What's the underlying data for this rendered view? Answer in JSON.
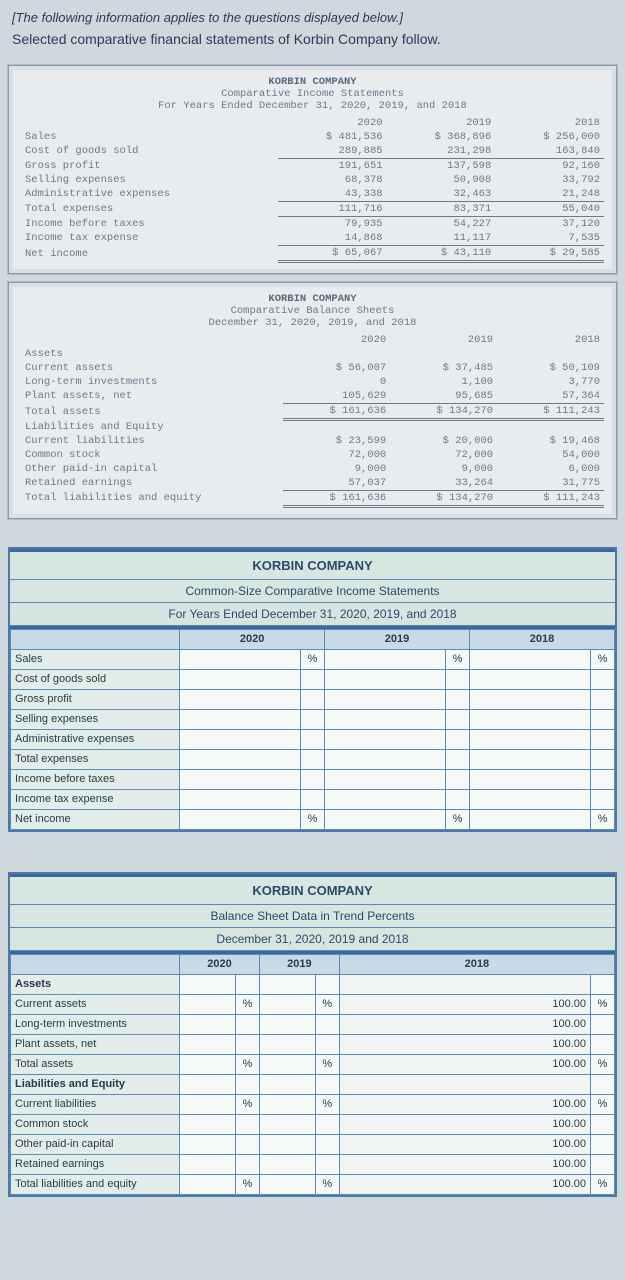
{
  "intro_italic": "[The following information applies to the questions displayed below.]",
  "intro_text": "Selected comparative financial statements of Korbin Company follow.",
  "company": "KORBIN COMPANY",
  "income_stmt": {
    "title": "Comparative Income Statements",
    "period": "For Years Ended December 31, 2020, 2019, and 2018",
    "years": [
      "2020",
      "2019",
      "2018"
    ],
    "rows": [
      {
        "label": "Sales",
        "v": [
          "$ 481,536",
          "$ 368,896",
          "$ 256,000"
        ]
      },
      {
        "label": "Cost of goods sold",
        "v": [
          "289,885",
          "231,298",
          "163,840"
        ],
        "ul": true
      },
      {
        "label": "Gross profit",
        "v": [
          "191,651",
          "137,598",
          "92,160"
        ]
      },
      {
        "label": "Selling expenses",
        "v": [
          "68,378",
          "50,908",
          "33,792"
        ]
      },
      {
        "label": "Administrative expenses",
        "v": [
          "43,338",
          "32,463",
          "21,248"
        ],
        "ul": true
      },
      {
        "label": "Total expenses",
        "v": [
          "111,716",
          "83,371",
          "55,040"
        ],
        "ul": true
      },
      {
        "label": "Income before taxes",
        "v": [
          "79,935",
          "54,227",
          "37,120"
        ]
      },
      {
        "label": "Income tax expense",
        "v": [
          "14,868",
          "11,117",
          "7,535"
        ],
        "ul": true
      },
      {
        "label": "Net income",
        "v": [
          "$ 65,067",
          "$ 43,110",
          "$ 29,585"
        ],
        "dbl": true
      }
    ]
  },
  "balance_sheet": {
    "title": "Comparative Balance Sheets",
    "period": "December 31, 2020, 2019, and 2018",
    "years": [
      "2020",
      "2019",
      "2018"
    ],
    "sections": [
      {
        "header": "Assets",
        "rows": [
          {
            "label": "Current assets",
            "v": [
              "$ 56,007",
              "$ 37,485",
              "$ 50,109"
            ]
          },
          {
            "label": "Long-term investments",
            "v": [
              "0",
              "1,100",
              "3,770"
            ]
          },
          {
            "label": "Plant assets, net",
            "v": [
              "105,629",
              "95,685",
              "57,364"
            ],
            "ul": true
          },
          {
            "label": "Total assets",
            "v": [
              "$ 161,636",
              "$ 134,270",
              "$ 111,243"
            ],
            "dbl": true
          }
        ]
      },
      {
        "header": "Liabilities and Equity",
        "rows": [
          {
            "label": "Current liabilities",
            "v": [
              "$ 23,599",
              "$ 20,006",
              "$ 19,468"
            ]
          },
          {
            "label": "Common stock",
            "v": [
              "72,000",
              "72,000",
              "54,000"
            ]
          },
          {
            "label": "Other paid-in capital",
            "v": [
              "9,000",
              "9,000",
              "6,000"
            ]
          },
          {
            "label": "Retained earnings",
            "v": [
              "57,037",
              "33,264",
              "31,775"
            ],
            "ul": true
          },
          {
            "label": "Total liabilities and equity",
            "v": [
              "$ 161,636",
              "$ 134,270",
              "$ 111,243"
            ],
            "dbl": true
          }
        ]
      }
    ]
  },
  "ws1": {
    "title1": "KORBIN COMPANY",
    "title2": "Common-Size Comparative Income Statements",
    "title3": "For Years Ended December 31, 2020, 2019, and 2018",
    "year_heads": [
      "2020",
      "2019",
      "2018"
    ],
    "rows": [
      {
        "label": "Sales",
        "pct": [
          "%",
          "%",
          "%"
        ]
      },
      {
        "label": "Cost of goods sold",
        "pct": [
          "",
          "",
          ""
        ]
      },
      {
        "label": "Gross profit",
        "pct": [
          "",
          "",
          ""
        ]
      },
      {
        "label": "Selling expenses",
        "pct": [
          "",
          "",
          ""
        ]
      },
      {
        "label": "Administrative expenses",
        "pct": [
          "",
          "",
          ""
        ]
      },
      {
        "label": "Total expenses",
        "pct": [
          "",
          "",
          ""
        ]
      },
      {
        "label": "Income before taxes",
        "pct": [
          "",
          "",
          ""
        ]
      },
      {
        "label": "Income tax expense",
        "pct": [
          "",
          "",
          ""
        ]
      },
      {
        "label": "Net income",
        "pct": [
          "%",
          "%",
          "%"
        ]
      }
    ]
  },
  "ws2": {
    "title1": "KORBIN COMPANY",
    "title2": "Balance Sheet Data in Trend Percents",
    "title3": "December 31, 2020, 2019 and 2018",
    "year_heads": [
      "2020",
      "2019",
      "2018"
    ],
    "sections": [
      {
        "header": "Assets",
        "rows": [
          {
            "label": "Current assets",
            "pct": [
              "%",
              "%"
            ],
            "val": "100.00",
            "vp": "%"
          },
          {
            "label": "Long-term investments",
            "pct": [
              "",
              ""
            ],
            "val": "100.00",
            "vp": ""
          },
          {
            "label": "Plant assets, net",
            "pct": [
              "",
              ""
            ],
            "val": "100.00",
            "vp": ""
          },
          {
            "label": "Total assets",
            "pct": [
              "%",
              "%"
            ],
            "val": "100.00",
            "vp": "%"
          }
        ]
      },
      {
        "header": "Liabilities and Equity",
        "rows": [
          {
            "label": "Current liabilities",
            "pct": [
              "%",
              "%"
            ],
            "val": "100.00",
            "vp": "%"
          },
          {
            "label": "Common stock",
            "pct": [
              "",
              ""
            ],
            "val": "100.00",
            "vp": ""
          },
          {
            "label": "Other paid-in capital",
            "pct": [
              "",
              ""
            ],
            "val": "100.00",
            "vp": ""
          },
          {
            "label": "Retained earnings",
            "pct": [
              "",
              ""
            ],
            "val": "100.00",
            "vp": ""
          },
          {
            "label": "Total liabilities and equity",
            "pct": [
              "%",
              "%"
            ],
            "val": "100.00",
            "vp": "%"
          }
        ]
      }
    ]
  }
}
